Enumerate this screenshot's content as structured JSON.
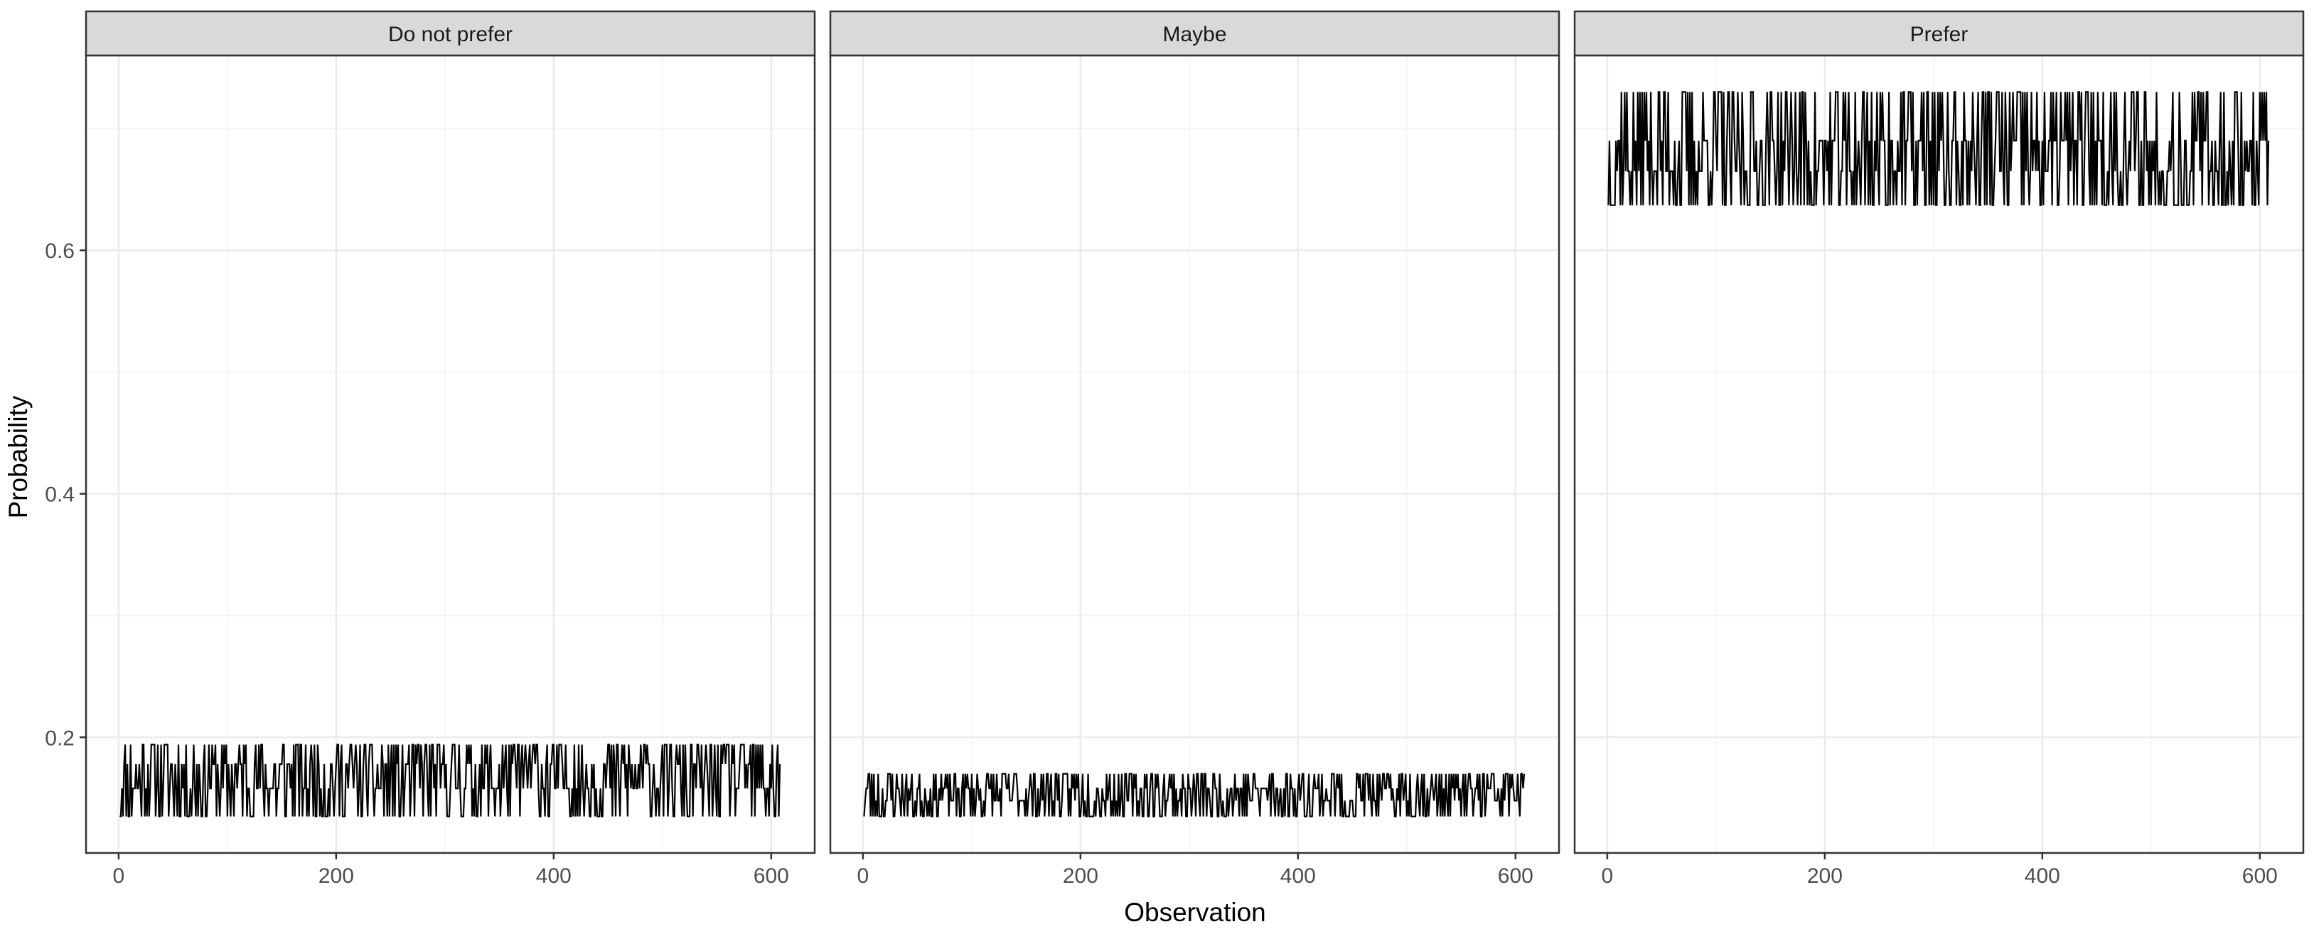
{
  "chart_data": {
    "type": "line",
    "xlabel": "Observation",
    "ylabel": "Probability",
    "xlim": [
      -30,
      640
    ],
    "ylim": [
      0.105,
      0.76
    ],
    "x_ticks": [
      0,
      200,
      400,
      600
    ],
    "x_tick_labels": [
      "0",
      "200",
      "400",
      "600"
    ],
    "y_ticks": [
      0.2,
      0.4,
      0.6
    ],
    "y_tick_labels": [
      "0.2",
      "0.4",
      "0.6"
    ],
    "y_minor_ticks": [
      0.3,
      0.5,
      0.7
    ],
    "x_minor_ticks": [
      100,
      300,
      500
    ],
    "grid": true,
    "n_observations": 608,
    "panels": [
      {
        "name": "Do not prefer",
        "levels": [
          0.135,
          0.158,
          0.178,
          0.194
        ],
        "weights": [
          0.28,
          0.24,
          0.2,
          0.28
        ],
        "seed": 11
      },
      {
        "name": "Maybe",
        "levels": [
          0.135,
          0.148,
          0.158,
          0.17
        ],
        "weights": [
          0.28,
          0.22,
          0.2,
          0.3
        ],
        "seed": 23
      },
      {
        "name": "Prefer",
        "levels": [
          0.637,
          0.665,
          0.69,
          0.73
        ],
        "weights": [
          0.3,
          0.2,
          0.22,
          0.28
        ],
        "seed": 37
      }
    ]
  },
  "colors": {
    "panel_background": "#ffffff",
    "strip_background": "#d9d9d9",
    "border": "#333333",
    "grid_major": "#ebebeb",
    "grid_minor": "#f4f4f4",
    "line": "#000000",
    "tick": "#333333"
  }
}
